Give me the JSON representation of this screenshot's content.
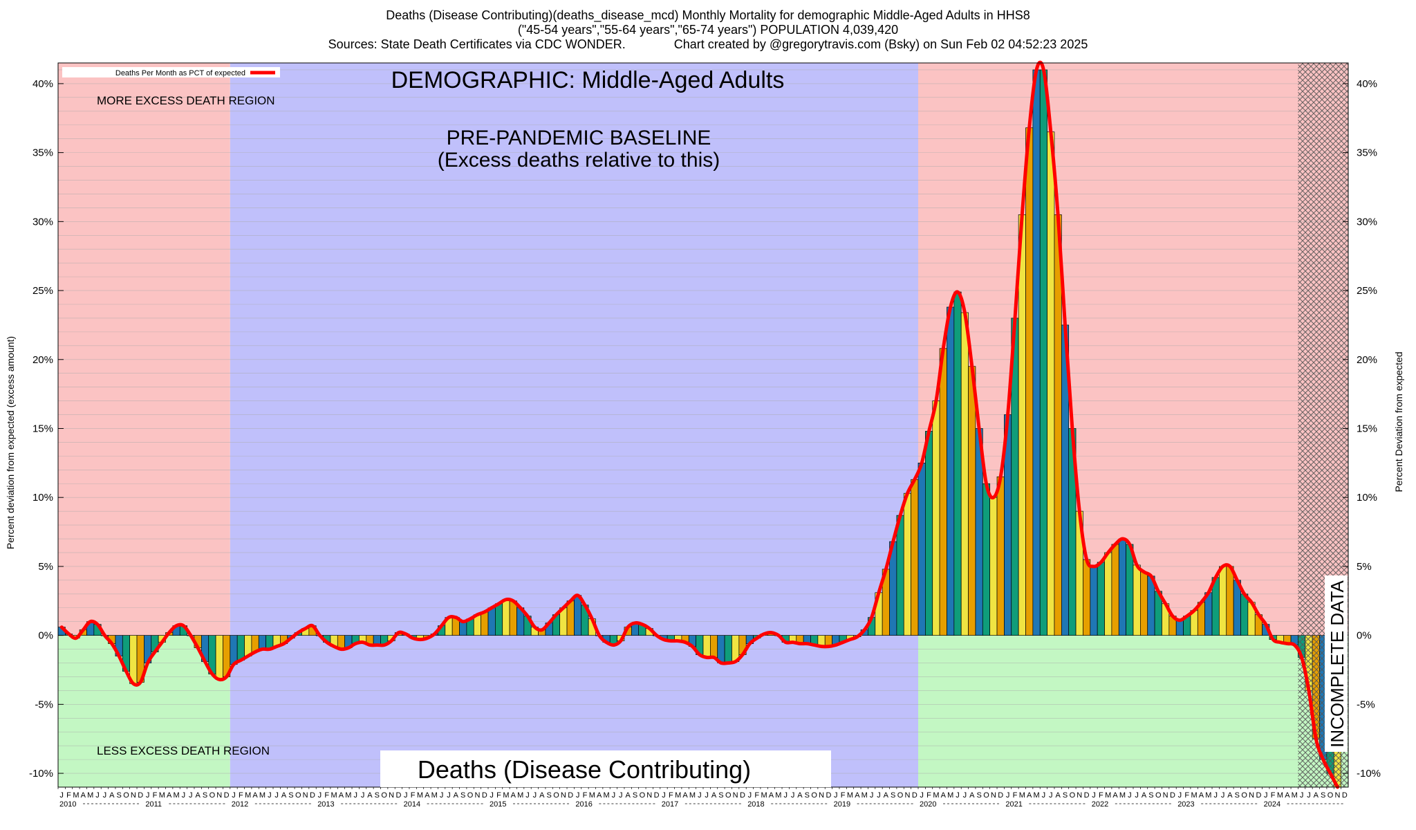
{
  "title_lines": [
    "Deaths (Disease Contributing)(deaths_disease_mcd) Monthly Mortality for demographic Middle-Aged Adults in HHS8",
    "(\"45-54 years\",\"55-64 years\",\"65-74 years\") POPULATION 4,039,420",
    "Sources: State Death Certificates via CDC WONDER.              Chart created by @gregorytravis.com (Bsky) on Sun Feb 02 04:52:23 2025"
  ],
  "chart_data": {
    "type": "bar",
    "title": "Deaths (Disease Contributing)",
    "demographic_label": "DEMOGRAPHIC: Middle-Aged Adults",
    "baseline_label_1": "PRE-PANDEMIC BASELINE",
    "baseline_label_2": "(Excess deaths relative to this)",
    "more_region_label": "MORE EXCESS DEATH REGION",
    "less_region_label": "LESS EXCESS DEATH REGION",
    "incomplete_label": "INCOMPLETE DATA",
    "legend_label": "Deaths Per Month as PCT of expected",
    "legend_position": "top-left",
    "ylabel_left": "Percent deviation from expected (excess amount)",
    "ylabel_right": "Percent Deviation from expected",
    "ylim": [
      -11,
      41.5
    ],
    "ytick_values": [
      -10,
      -5,
      0,
      5,
      10,
      15,
      20,
      25,
      30,
      35,
      40
    ],
    "ytick_labels": [
      "-10%",
      "-5%",
      "0%",
      "5%",
      "10%",
      "15%",
      "20%",
      "25%",
      "30%",
      "35%",
      "40%"
    ],
    "grid_step": 1,
    "start": "2010-01",
    "month_letters": [
      "J",
      "F",
      "M",
      "A",
      "M",
      "J",
      "J",
      "A",
      "S",
      "O",
      "N",
      "D"
    ],
    "years": [
      "2010",
      "2011",
      "2012",
      "2013",
      "2014",
      "2015",
      "2016",
      "2017",
      "2018",
      "2019",
      "2020",
      "2021",
      "2022",
      "2023",
      "2024"
    ],
    "bar_colors": [
      "#1f77b4",
      "#0f9d7a",
      "#f0e442",
      "#e69f00"
    ],
    "line_color": "#ff0000",
    "region_colors": {
      "more": "#fbc3c3",
      "less": "#c3f7c3",
      "baseline": "#c0c0fb"
    },
    "baseline_range": [
      "2012-01",
      "2019-12"
    ],
    "incomplete_range": [
      "2024-06",
      "2024-12"
    ],
    "values": [
      0.6,
      0.1,
      -0.2,
      0.4,
      1.0,
      0.8,
      0.0,
      -0.6,
      -1.5,
      -2.6,
      -3.5,
      -3.4,
      -2.0,
      -1.2,
      -0.5,
      0.2,
      0.7,
      0.7,
      0.0,
      -0.9,
      -1.9,
      -2.8,
      -3.2,
      -3.0,
      -2.1,
      -1.8,
      -1.5,
      -1.2,
      -1.0,
      -1.0,
      -0.8,
      -0.6,
      -0.2,
      0.2,
      0.5,
      0.7,
      0.0,
      -0.5,
      -0.8,
      -1.0,
      -0.9,
      -0.6,
      -0.5,
      -0.7,
      -0.7,
      -0.7,
      -0.4,
      0.2,
      0.1,
      -0.2,
      -0.3,
      -0.2,
      0.1,
      0.7,
      1.3,
      1.3,
      1.0,
      1.2,
      1.5,
      1.7,
      2.0,
      2.3,
      2.6,
      2.5,
      2.0,
      1.4,
      0.6,
      0.4,
      0.9,
      1.5,
      2.0,
      2.5,
      2.9,
      2.2,
      1.2,
      0.0,
      -0.5,
      -0.7,
      -0.4,
      0.6,
      0.9,
      0.8,
      0.5,
      0.0,
      -0.3,
      -0.4,
      -0.4,
      -0.5,
      -0.8,
      -1.4,
      -1.6,
      -1.6,
      -2.0,
      -2.0,
      -1.9,
      -1.4,
      -0.6,
      -0.2,
      0.1,
      0.2,
      0.0,
      -0.5,
      -0.5,
      -0.6,
      -0.6,
      -0.7,
      -0.8,
      -0.8,
      -0.7,
      -0.5,
      -0.3,
      -0.1,
      0.4,
      1.3,
      3.1,
      4.8,
      6.8,
      8.7,
      10.3,
      11.3,
      12.5,
      14.8,
      17.0,
      20.8,
      23.8,
      24.9,
      23.4,
      19.5,
      15.0,
      11.0,
      10.0,
      11.5,
      16.0,
      23.0,
      30.5,
      36.8,
      41.0,
      41.0,
      36.5,
      30.5,
      22.5,
      15.0,
      9.0,
      5.5,
      5.0,
      5.3,
      6.0,
      6.6,
      7.0,
      6.6,
      5.1,
      4.6,
      4.3,
      3.2,
      2.3,
      1.4,
      1.1,
      1.4,
      1.8,
      2.4,
      3.1,
      4.2,
      5.0,
      5.0,
      4.0,
      3.0,
      2.4,
      1.5,
      0.8,
      -0.3,
      -0.5,
      -0.6,
      -0.7,
      -1.6,
      -4.0,
      -7.5,
      -9.0,
      -10.0,
      -11.0
    ]
  }
}
